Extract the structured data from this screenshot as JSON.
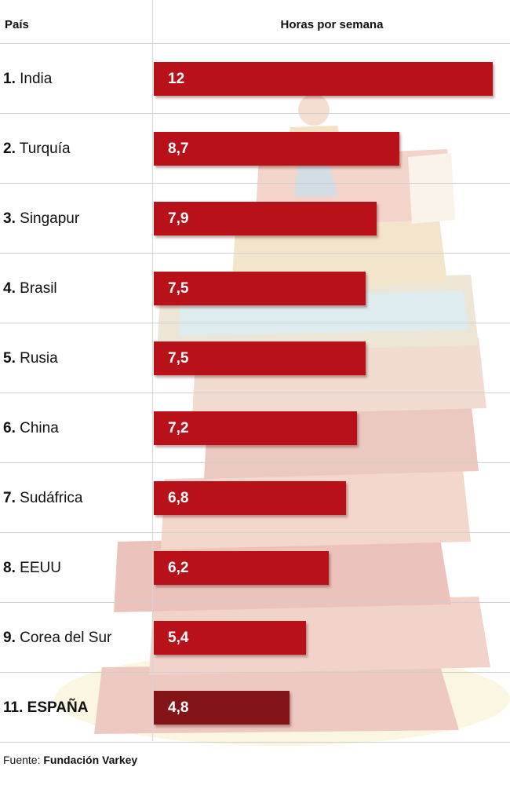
{
  "header": {
    "country_label": "País",
    "value_label": "Horas por semana"
  },
  "chart_data": {
    "type": "bar",
    "orientation": "horizontal",
    "categories": [
      "India",
      "Turquía",
      "Singapur",
      "Brasil",
      "Rusia",
      "China",
      "Sudáfrica",
      "EEUU",
      "Corea del Sur",
      "ESPAÑA"
    ],
    "ranks": [
      "1.",
      "2.",
      "3.",
      "4.",
      "5.",
      "6.",
      "7.",
      "8.",
      "9.",
      "11."
    ],
    "values": [
      12,
      8.7,
      7.9,
      7.5,
      7.5,
      7.2,
      6.8,
      6.2,
      5.4,
      4.8
    ],
    "value_labels": [
      "12",
      "8,7",
      "7,9",
      "7,5",
      "7,5",
      "7,2",
      "6,8",
      "6,2",
      "5,4",
      "4,8"
    ],
    "highlight": "ESPAÑA",
    "xlim": [
      0,
      12
    ],
    "colors": {
      "bar": "#b91119",
      "highlight_bar": "#831417"
    }
  },
  "source": {
    "prefix": "Fuente:",
    "name": "Fundación Varkey"
  }
}
